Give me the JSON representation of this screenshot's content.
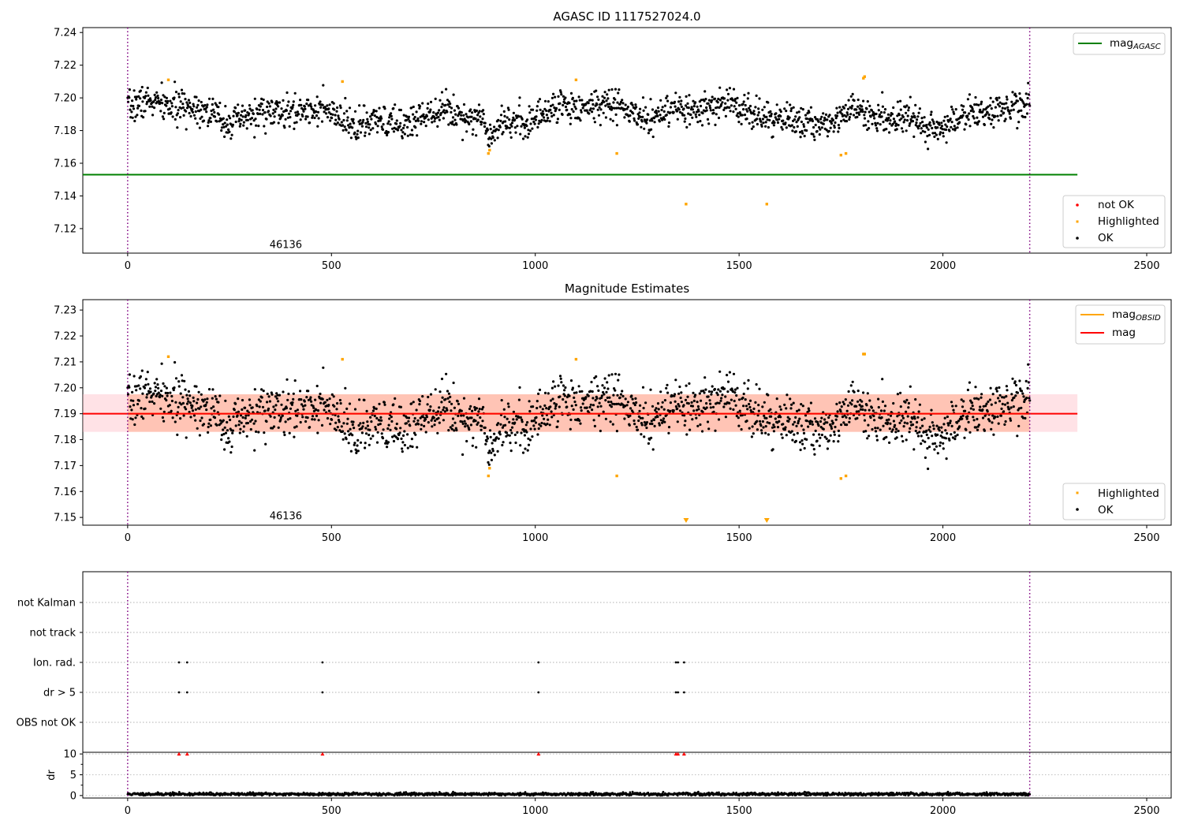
{
  "chart_data": [
    {
      "type": "scatter",
      "title": "AGASC ID 1117527024.0",
      "xlim": [
        -110,
        2560
      ],
      "ylim": [
        7.105,
        7.243
      ],
      "x_ticks": [
        0,
        500,
        1000,
        1500,
        2000,
        2500
      ],
      "y_ticks": [
        7.12,
        7.14,
        7.16,
        7.18,
        7.2,
        7.22,
        7.24
      ],
      "obsid_label": "46136",
      "obsid_label_x": 1100,
      "obsid_label_y": 7.11,
      "boundaries_x": [
        0,
        2213
      ],
      "lines": [
        {
          "name": "mag_AGASC",
          "label": "mag",
          "label_sub": "AGASC",
          "y": 7.153,
          "x": [
            -110,
            2330
          ],
          "color": "#008000"
        }
      ],
      "series": [
        {
          "name": "not OK",
          "color": "#ff0000",
          "values": []
        },
        {
          "name": "Highlighted",
          "color": "#ffa500",
          "points": [
            [
              100,
              7.211
            ],
            [
              527,
              7.21
            ],
            [
              885,
              7.166
            ],
            [
              888,
              7.168
            ],
            [
              1100,
              7.211
            ],
            [
              1200,
              7.166
            ],
            [
              1370,
              7.135
            ],
            [
              1568,
              7.135
            ],
            [
              1750,
              7.165
            ],
            [
              1762,
              7.166
            ],
            [
              1805,
              7.212
            ],
            [
              1808,
              7.213
            ]
          ]
        },
        {
          "name": "OK",
          "color": "#000000",
          "x_range": [
            0,
            2213
          ],
          "n_points": 1800,
          "y_center": 7.19,
          "y_spread": 0.011
        }
      ],
      "legend_lines": {
        "placement": "top-right"
      },
      "legend_points": {
        "placement": "lower-right",
        "entries": [
          "not OK",
          "Highlighted",
          "OK"
        ]
      }
    },
    {
      "type": "scatter",
      "title": "Magnitude Estimates",
      "xlim": [
        -110,
        2560
      ],
      "ylim": [
        7.147,
        7.234
      ],
      "x_ticks": [
        0,
        500,
        1000,
        1500,
        2000,
        2500
      ],
      "y_ticks": [
        7.15,
        7.16,
        7.17,
        7.18,
        7.19,
        7.2,
        7.21,
        7.22,
        7.23
      ],
      "obsid_label": "46136",
      "obsid_label_x": 1100,
      "obsid_label_y": 7.1505,
      "boundaries_x": [
        0,
        2213
      ],
      "bands": [
        {
          "x": [
            -110,
            2330
          ],
          "y": [
            7.183,
            7.1975
          ],
          "color": "#ffb6c1",
          "opacity": 0.4
        },
        {
          "x": [
            0,
            2213
          ],
          "y": [
            7.183,
            7.1975
          ],
          "color": "#ffa07a",
          "opacity": 0.45
        }
      ],
      "lines": [
        {
          "name": "mag_OBSID",
          "label": "mag",
          "label_sub": "OBSID",
          "y": 7.19,
          "x": [
            0,
            2213
          ],
          "color": "#ffa500"
        },
        {
          "name": "mag",
          "label": "mag",
          "label_sub": "",
          "y": 7.19,
          "x": [
            -110,
            2330
          ],
          "color": "#ff0000"
        }
      ],
      "series": [
        {
          "name": "Highlighted",
          "color": "#ffa500",
          "points": [
            [
              100,
              7.212
            ],
            [
              527,
              7.211
            ],
            [
              885,
              7.166
            ],
            [
              888,
              7.169
            ],
            [
              1100,
              7.211
            ],
            [
              1200,
              7.166
            ],
            [
              1750,
              7.165
            ],
            [
              1762,
              7.166
            ],
            [
              1805,
              7.213
            ],
            [
              1808,
              7.213
            ]
          ]
        },
        {
          "name": "OK",
          "color": "#000000",
          "x_range": [
            0,
            2213
          ],
          "n_points": 1800,
          "y_center": 7.19,
          "y_spread": 0.011
        }
      ],
      "off_scale_markers": [
        {
          "x": 1370,
          "color": "#ffa500"
        },
        {
          "x": 1568,
          "color": "#ffa500"
        }
      ],
      "legend_lines": {
        "placement": "top-right"
      },
      "legend_points": {
        "placement": "lower-right",
        "entries": [
          "Highlighted",
          "OK"
        ]
      }
    },
    {
      "type": "scatter",
      "title": "",
      "xlim": [
        -110,
        2560
      ],
      "categories": [
        "not Kalman",
        "not track",
        "Ion. rad.",
        "dr > 5",
        "OBS not OK"
      ],
      "boundaries_x": [
        0,
        2213
      ],
      "flag_points": {
        "Ion. rad.": [
          126,
          146,
          478,
          1008,
          1345,
          1350,
          1365
        ],
        "dr > 5": [
          126,
          146,
          478,
          1008,
          1345,
          1350,
          1365
        ]
      }
    },
    {
      "type": "scatter",
      "title": "",
      "xlim": [
        -110,
        2560
      ],
      "ylim": [
        -0.6,
        10.4
      ],
      "ylabel": "dr",
      "x_ticks": [
        0,
        500,
        1000,
        1500,
        2000,
        2500
      ],
      "y_ticks": [
        0,
        5,
        10
      ],
      "boundaries_x": [
        0,
        2213
      ],
      "dr_baseline": {
        "x_range": [
          0,
          2213
        ],
        "mean": 0.35,
        "max": 0.9
      },
      "clipped_points": [
        126,
        146,
        478,
        1008,
        1345,
        1350,
        1365
      ],
      "clip_value": 10
    }
  ]
}
